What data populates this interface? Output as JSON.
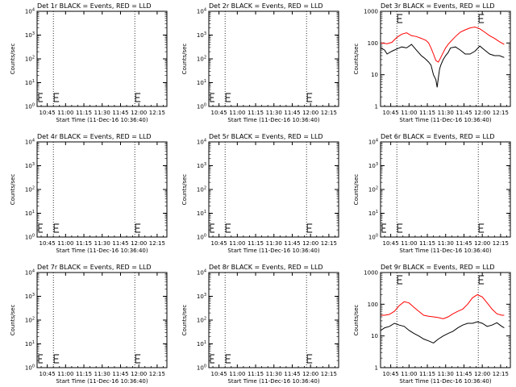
{
  "page": {
    "background": "#ffffff",
    "line_color": "#000000",
    "lld_color": "#ff0000",
    "event_color": "#000000"
  },
  "shared": {
    "x_tick_labels": [
      "10:45",
      "11:00",
      "11:15",
      "11:30",
      "11:45",
      "12:00",
      "12:15"
    ],
    "x_tick_minutes": [
      45,
      60,
      75,
      90,
      105,
      120,
      135
    ],
    "xlim_minutes": [
      36.67,
      143
    ],
    "xlabel": "Start Time (11-Dec-16 10:36:40)",
    "ylabel": "Counts/sec",
    "dotted_lines_minutes": [
      50,
      116.7
    ]
  },
  "chart_data": [
    {
      "type": "line",
      "title": "Det 1r BLACK = Events, RED = LLD",
      "yscale": "log",
      "ylim": [
        1,
        10000
      ],
      "y_tick_labels": [
        "10^0",
        "10^1",
        "10^2",
        "10^3",
        "10^4"
      ],
      "y_tick_values": [
        1,
        10,
        100,
        1000,
        10000
      ],
      "series": []
    },
    {
      "type": "line",
      "title": "Det 2r BLACK = Events, RED = LLD",
      "yscale": "log",
      "ylim": [
        1,
        10000
      ],
      "y_tick_labels": [
        "10^0",
        "10^1",
        "10^2",
        "10^3",
        "10^4"
      ],
      "y_tick_values": [
        1,
        10,
        100,
        1000,
        10000
      ],
      "series": []
    },
    {
      "type": "line",
      "title": "Det 3r BLACK = Events, RED = LLD",
      "yscale": "log",
      "ylim": [
        1,
        1000
      ],
      "y_tick_labels": [
        "1",
        "10",
        "100",
        "1000"
      ],
      "y_tick_values": [
        1,
        10,
        100,
        1000
      ],
      "series": [
        {
          "color": "#ff0000",
          "x": [
            37,
            42,
            46,
            50,
            54,
            58,
            62,
            66,
            70,
            74,
            76,
            78,
            80,
            82,
            84,
            86,
            88,
            90,
            92,
            94,
            98,
            102,
            106,
            110,
            114,
            118,
            122,
            126,
            130,
            134,
            138
          ],
          "y": [
            100,
            95,
            105,
            150,
            190,
            210,
            170,
            160,
            140,
            120,
            100,
            70,
            45,
            28,
            25,
            35,
            50,
            70,
            90,
            110,
            160,
            220,
            260,
            300,
            320,
            280,
            220,
            170,
            140,
            110,
            90
          ]
        },
        {
          "color": "#000000",
          "x": [
            37,
            40,
            42,
            46,
            50,
            54,
            58,
            62,
            66,
            70,
            72,
            74,
            76,
            78,
            80,
            82,
            83,
            84,
            85,
            86,
            88,
            90,
            92,
            94,
            98,
            102,
            106,
            110,
            114,
            118,
            122,
            126,
            130,
            134,
            138
          ],
          "y": [
            70,
            60,
            45,
            55,
            65,
            75,
            70,
            90,
            60,
            40,
            35,
            30,
            25,
            20,
            10,
            7,
            4,
            8,
            15,
            20,
            30,
            40,
            50,
            70,
            75,
            60,
            45,
            45,
            55,
            80,
            60,
            45,
            40,
            40,
            35
          ]
        }
      ]
    },
    {
      "type": "line",
      "title": "Det 4r BLACK = Events, RED = LLD",
      "yscale": "log",
      "ylim": [
        1,
        10000
      ],
      "y_tick_labels": [
        "10^0",
        "10^1",
        "10^2",
        "10^3",
        "10^4"
      ],
      "y_tick_values": [
        1,
        10,
        100,
        1000,
        10000
      ],
      "series": []
    },
    {
      "type": "line",
      "title": "Det 5r BLACK = Events, RED = LLD",
      "yscale": "log",
      "ylim": [
        1,
        10000
      ],
      "y_tick_labels": [
        "10^0",
        "10^1",
        "10^2",
        "10^3",
        "10^4"
      ],
      "y_tick_values": [
        1,
        10,
        100,
        1000,
        10000
      ],
      "series": []
    },
    {
      "type": "line",
      "title": "Det 6r BLACK = Events, RED = LLD",
      "yscale": "log",
      "ylim": [
        1,
        10000
      ],
      "y_tick_labels": [
        "10^0",
        "10^1",
        "10^2",
        "10^3",
        "10^4"
      ],
      "y_tick_values": [
        1,
        10,
        100,
        1000,
        10000
      ],
      "series": []
    },
    {
      "type": "line",
      "title": "Det 7r BLACK = Events, RED = LLD",
      "yscale": "log",
      "ylim": [
        1,
        10000
      ],
      "y_tick_labels": [
        "10^0",
        "10^1",
        "10^2",
        "10^3",
        "10^4"
      ],
      "y_tick_values": [
        1,
        10,
        100,
        1000,
        10000
      ],
      "series": []
    },
    {
      "type": "line",
      "title": "Det 8r BLACK = Events, RED = LLD",
      "yscale": "log",
      "ylim": [
        1,
        10000
      ],
      "y_tick_labels": [
        "10^0",
        "10^1",
        "10^2",
        "10^3",
        "10^4"
      ],
      "y_tick_values": [
        1,
        10,
        100,
        1000,
        10000
      ],
      "series": []
    },
    {
      "type": "line",
      "title": "Det 9r BLACK = Events, RED = LLD",
      "yscale": "log",
      "ylim": [
        1,
        1000
      ],
      "y_tick_labels": [
        "1",
        "10",
        "100",
        "1000"
      ],
      "y_tick_values": [
        1,
        10,
        100,
        1000
      ],
      "series": [
        {
          "color": "#ff0000",
          "x": [
            37,
            40,
            44,
            48,
            52,
            56,
            60,
            64,
            68,
            72,
            76,
            80,
            84,
            88,
            92,
            96,
            100,
            104,
            108,
            112,
            116,
            120,
            124,
            128,
            132,
            136,
            138
          ],
          "y": [
            45,
            45,
            48,
            60,
            90,
            120,
            110,
            80,
            60,
            45,
            42,
            40,
            38,
            35,
            40,
            50,
            60,
            70,
            100,
            160,
            200,
            170,
            110,
            70,
            50,
            45,
            45
          ]
        },
        {
          "color": "#000000",
          "x": [
            37,
            40,
            44,
            48,
            52,
            56,
            60,
            64,
            68,
            72,
            76,
            80,
            84,
            88,
            92,
            96,
            100,
            104,
            108,
            112,
            116,
            120,
            124,
            128,
            132,
            136,
            138
          ],
          "y": [
            15,
            18,
            20,
            25,
            22,
            20,
            15,
            12,
            10,
            8,
            7,
            6,
            8,
            10,
            12,
            14,
            18,
            22,
            25,
            25,
            28,
            25,
            20,
            22,
            26,
            20,
            18
          ]
        }
      ]
    }
  ]
}
